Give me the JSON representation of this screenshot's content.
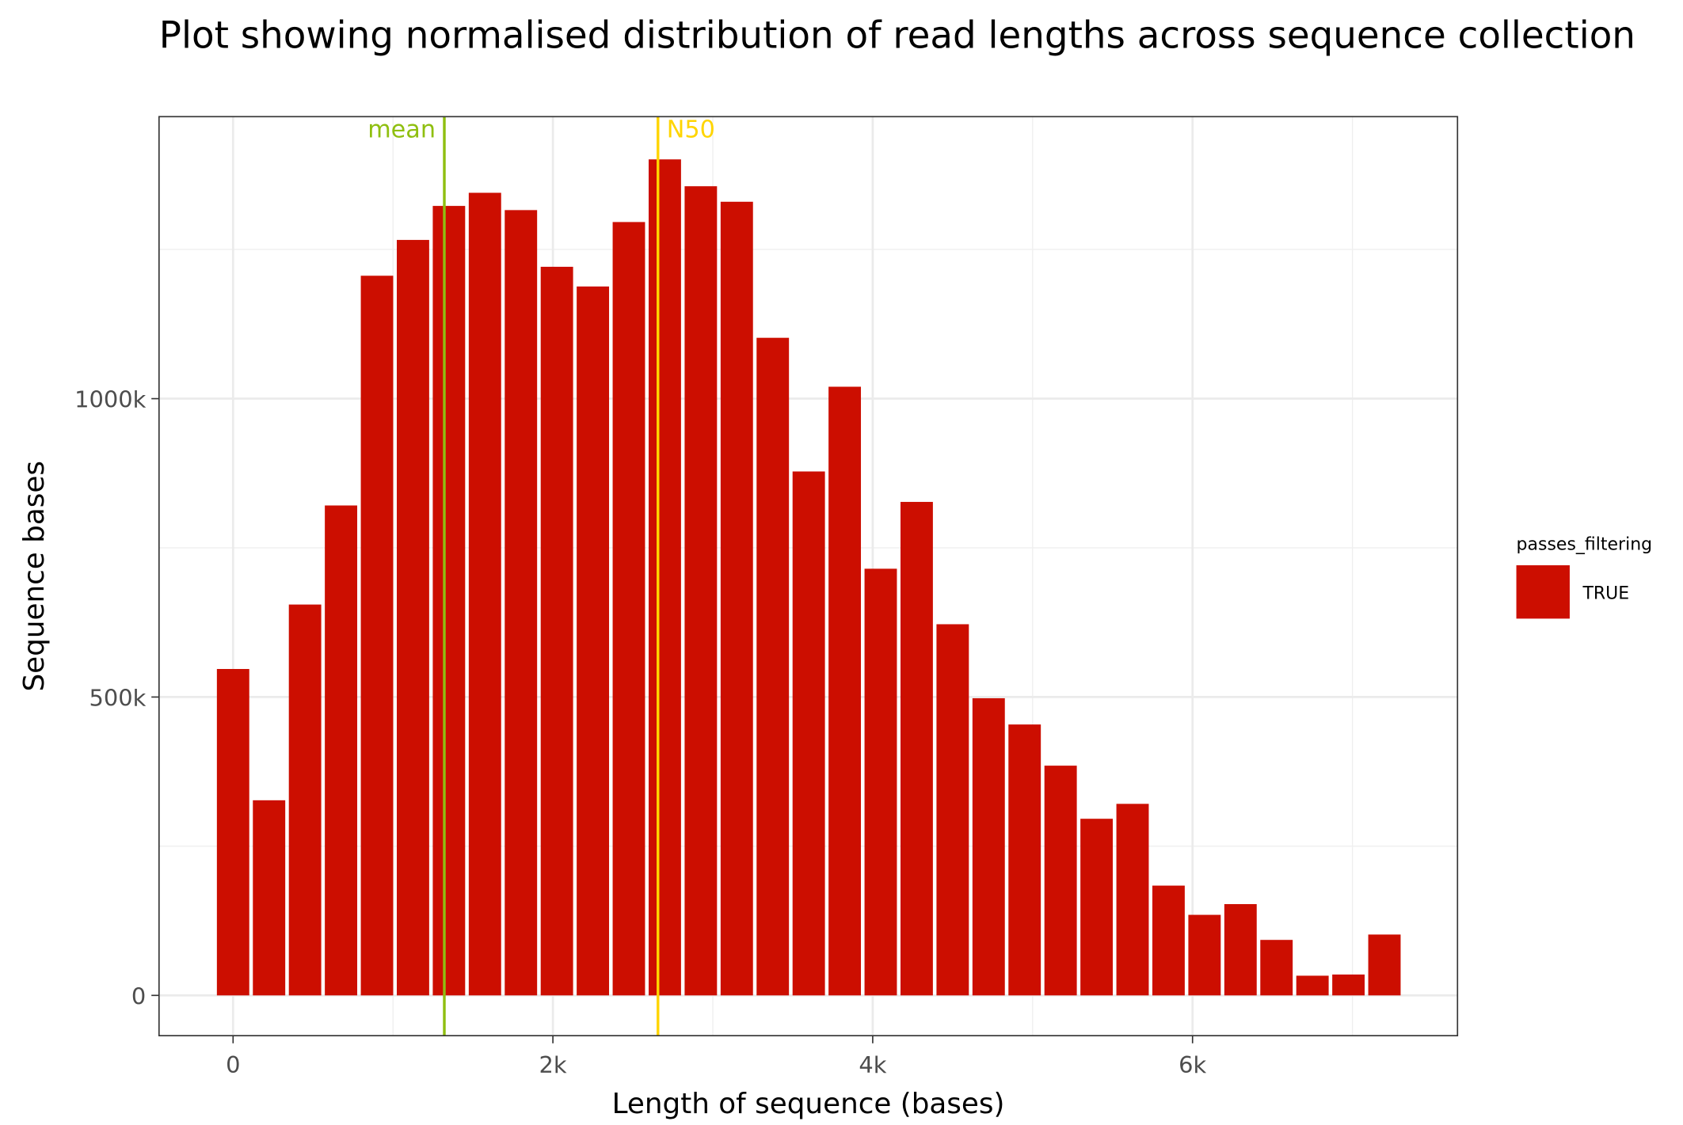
{
  "chart_data": {
    "type": "bar",
    "title": "Plot showing normalised distribution of read lengths across sequence collection",
    "x_label": "Length of sequence (bases)",
    "y_label": "Sequence bases",
    "x": [
      0,
      225,
      450,
      675,
      900,
      1125,
      1350,
      1575,
      1800,
      2025,
      2250,
      2475,
      2700,
      2925,
      3150,
      3375,
      3600,
      3825,
      4050,
      4275,
      4500,
      4725,
      4950,
      5175,
      5400,
      5625,
      5850,
      6075,
      6300,
      6525,
      6750,
      6975,
      7200
    ],
    "series": [
      {
        "name": "TRUE",
        "color": "#cc0e00",
        "values": [
          547000,
          327000,
          655000,
          821000,
          1206000,
          1266000,
          1323000,
          1345000,
          1316000,
          1221000,
          1188000,
          1296000,
          1401000,
          1356000,
          1330000,
          1102000,
          878000,
          1020000,
          715000,
          827000,
          622000,
          498000,
          454000,
          385000,
          296000,
          321000,
          184000,
          135000,
          153000,
          93000,
          33000,
          35000,
          102000
        ]
      }
    ],
    "legend_title": "passes_filtering",
    "xlim": [
      -463,
      7657
    ],
    "ylim": [
      -67500,
      1472600
    ],
    "xticks": [
      0,
      {
        "value": 2000,
        "label": "2k"
      },
      {
        "value": 4000,
        "label": "4k"
      },
      {
        "value": 6000,
        "label": "6k"
      }
    ],
    "yticks": [
      0,
      {
        "value": 500000,
        "label": "500k"
      },
      {
        "value": 1000000,
        "label": "1000k"
      }
    ],
    "grid": true,
    "vlines": [
      {
        "label": "mean",
        "value": 1321,
        "color": "#8fbf10"
      },
      {
        "label": "N50",
        "value": 2657,
        "color": "#ffd500"
      }
    ]
  }
}
